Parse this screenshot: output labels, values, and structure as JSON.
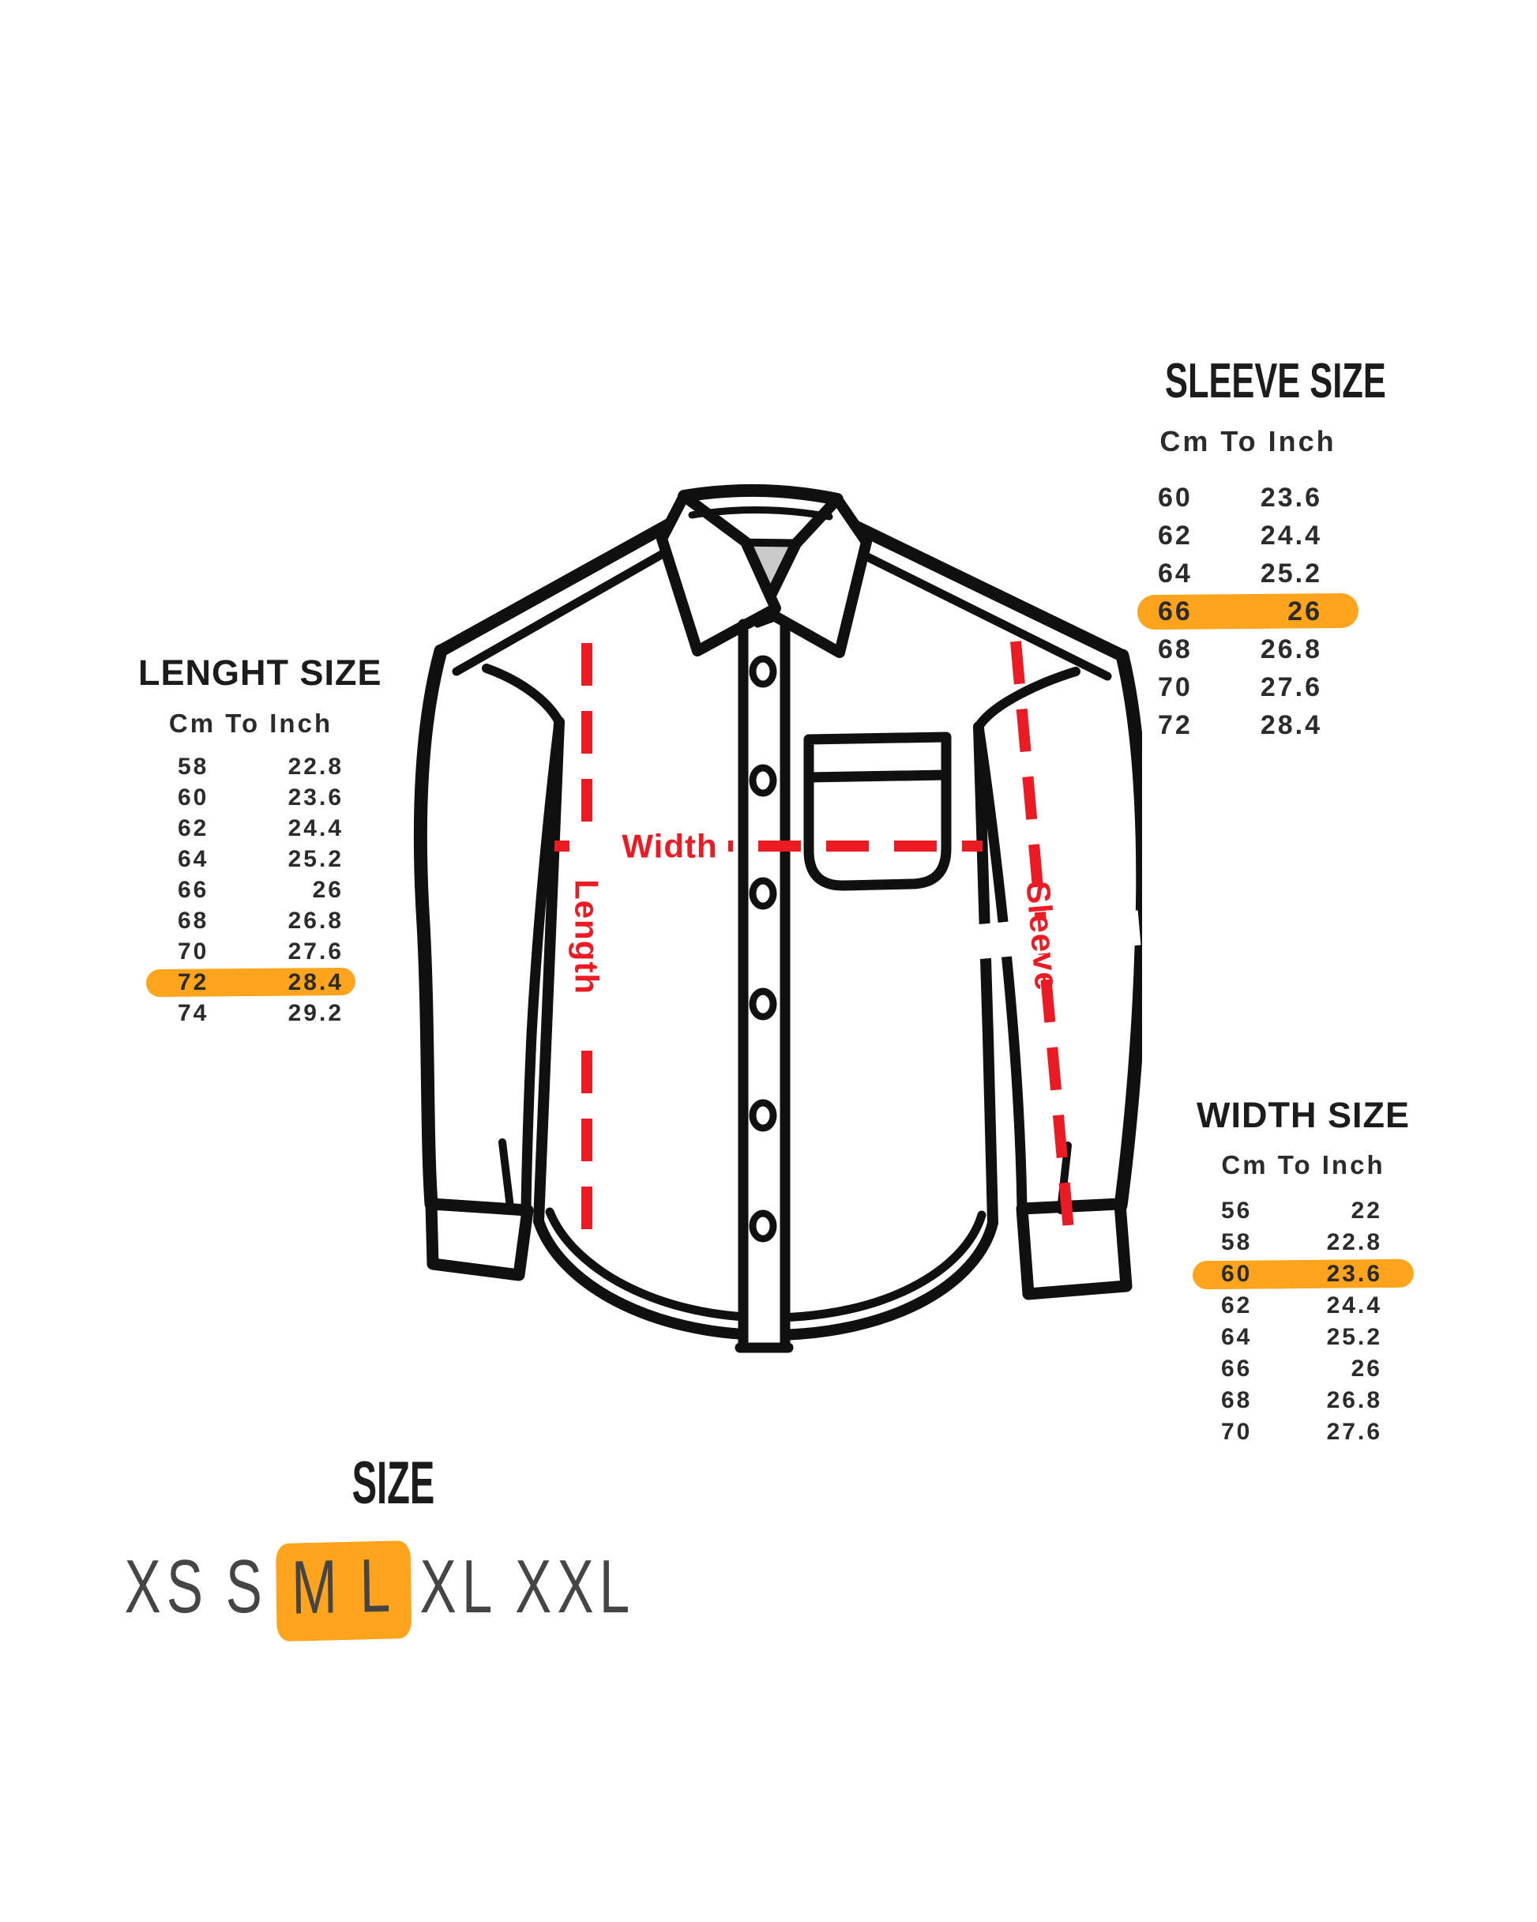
{
  "colors": {
    "highlight_orange": "#ffa41c",
    "measure_red": "#ec1b23",
    "ink_black": "#101010",
    "collar_gray": "#c9c9c9",
    "text_dark": "#2b2b2b"
  },
  "sleeve_table": {
    "title": "SLEEVE SIZE",
    "header": "Cm To Inch",
    "rows": [
      {
        "cm": "60",
        "inch": "23.6",
        "highlighted": false
      },
      {
        "cm": "62",
        "inch": "24.4",
        "highlighted": false
      },
      {
        "cm": "64",
        "inch": "25.2",
        "highlighted": false
      },
      {
        "cm": "66",
        "inch": "26",
        "highlighted": true
      },
      {
        "cm": "68",
        "inch": "26.8",
        "highlighted": false
      },
      {
        "cm": "70",
        "inch": "27.6",
        "highlighted": false
      },
      {
        "cm": "72",
        "inch": "28.4",
        "highlighted": false
      }
    ]
  },
  "length_table": {
    "title": "LENGHT SIZE",
    "header": "Cm To Inch",
    "rows": [
      {
        "cm": "58",
        "inch": "22.8",
        "highlighted": false
      },
      {
        "cm": "60",
        "inch": "23.6",
        "highlighted": false
      },
      {
        "cm": "62",
        "inch": "24.4",
        "highlighted": false
      },
      {
        "cm": "64",
        "inch": "25.2",
        "highlighted": false
      },
      {
        "cm": "66",
        "inch": "26",
        "highlighted": false
      },
      {
        "cm": "68",
        "inch": "26.8",
        "highlighted": false
      },
      {
        "cm": "70",
        "inch": "27.6",
        "highlighted": false
      },
      {
        "cm": "72",
        "inch": "28.4",
        "highlighted": true
      },
      {
        "cm": "74",
        "inch": "29.2",
        "highlighted": false
      }
    ]
  },
  "width_table": {
    "title": "WIDTH SIZE",
    "header": "Cm To Inch",
    "rows": [
      {
        "cm": "56",
        "inch": "22",
        "highlighted": false
      },
      {
        "cm": "58",
        "inch": "22.8",
        "highlighted": false
      },
      {
        "cm": "60",
        "inch": "23.6",
        "highlighted": true
      },
      {
        "cm": "62",
        "inch": "24.4",
        "highlighted": false
      },
      {
        "cm": "64",
        "inch": "25.2",
        "highlighted": false
      },
      {
        "cm": "66",
        "inch": "26",
        "highlighted": false
      },
      {
        "cm": "68",
        "inch": "26.8",
        "highlighted": false
      },
      {
        "cm": "70",
        "inch": "27.6",
        "highlighted": false
      }
    ]
  },
  "size_selector": {
    "title": "SIZE",
    "options": [
      {
        "label": "XS",
        "highlighted": false
      },
      {
        "label": "S",
        "highlighted": false
      },
      {
        "label": "M",
        "highlighted": true
      },
      {
        "label": "L",
        "highlighted": true
      },
      {
        "label": "XL",
        "highlighted": false
      },
      {
        "label": "XXL",
        "highlighted": false
      }
    ]
  },
  "shirt_diagram": {
    "length_label": "Length",
    "width_label": "Width",
    "sleeve_label": "Sleeve"
  }
}
